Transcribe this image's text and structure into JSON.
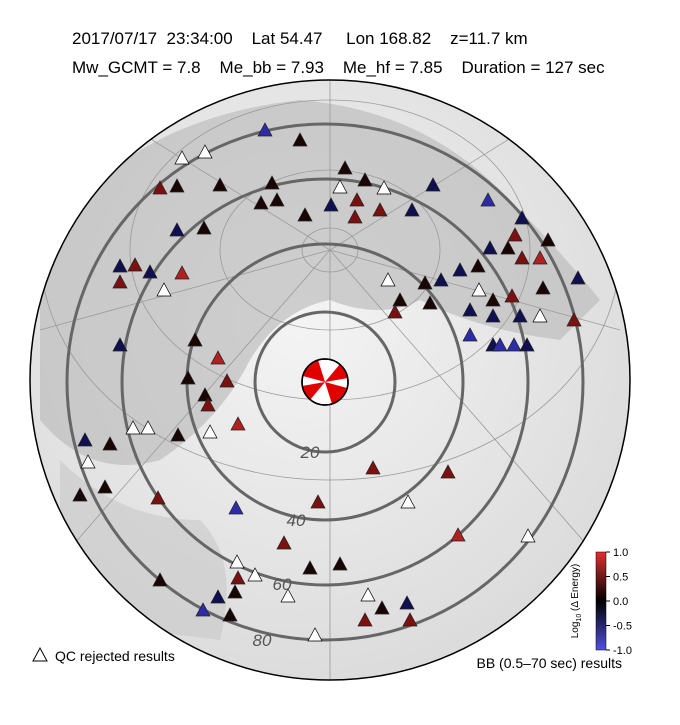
{
  "header": {
    "line1": "2017/07/17  23:34:00    Lat 54.47     Lon 168.82    z=11.7 km",
    "line2": "Mw_GCMT = 7.8    Me_bb = 7.93    Me_hf = 7.85    Duration = 127 sec"
  },
  "distance_rings": [
    "20",
    "40",
    "60",
    "80"
  ],
  "legend": {
    "rejected": "QC rejected results",
    "source": "BB (0.5–70 sec) results"
  },
  "colorbar": {
    "label_prefix": "Log",
    "label_subscript": "10",
    "label_suffix": " (Δ Energy)",
    "lim": [
      -1,
      1
    ],
    "ticks": [
      {
        "value": 1,
        "label": "1.0"
      },
      {
        "value": 0.5,
        "label": "0.5"
      },
      {
        "value": 0,
        "label": "0.0"
      },
      {
        "value": -0.5,
        "label": "-0.5"
      },
      {
        "value": -1,
        "label": "-1.0"
      }
    ]
  }
}
